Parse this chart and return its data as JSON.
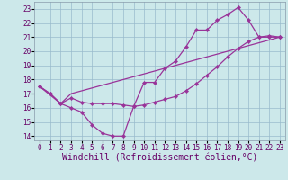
{
  "bg_color": "#cce8ea",
  "line_color": "#993399",
  "grid_color": "#99bbcc",
  "xlim": [
    -0.5,
    23.5
  ],
  "ylim": [
    13.7,
    23.5
  ],
  "xticks": [
    0,
    1,
    2,
    3,
    4,
    5,
    6,
    7,
    8,
    9,
    10,
    11,
    12,
    13,
    14,
    15,
    16,
    17,
    18,
    19,
    20,
    21,
    22,
    23
  ],
  "yticks": [
    14,
    15,
    16,
    17,
    18,
    19,
    20,
    21,
    22,
    23
  ],
  "line1_x": [
    0,
    1,
    2,
    3,
    4,
    5,
    6,
    7,
    8,
    9,
    10,
    11,
    12,
    13,
    14,
    15,
    16,
    17,
    18,
    19,
    20,
    21,
    22,
    23
  ],
  "line1_y": [
    17.5,
    17.0,
    16.3,
    16.0,
    15.7,
    14.8,
    14.2,
    14.0,
    14.0,
    16.1,
    17.8,
    17.8,
    18.8,
    19.3,
    20.3,
    21.5,
    21.5,
    22.2,
    22.6,
    23.1,
    22.2,
    21.0,
    21.0,
    21.0
  ],
  "line2_x": [
    0,
    2,
    3,
    23
  ],
  "line2_y": [
    17.5,
    16.3,
    17.0,
    21.0
  ],
  "line3_x": [
    0,
    1,
    2,
    3,
    4,
    5,
    6,
    7,
    8,
    9,
    10,
    11,
    12,
    13,
    14,
    15,
    16,
    17,
    18,
    19,
    20,
    21,
    22,
    23
  ],
  "line3_y": [
    17.5,
    17.0,
    16.3,
    16.7,
    16.4,
    16.3,
    16.3,
    16.3,
    16.2,
    16.1,
    16.2,
    16.4,
    16.6,
    16.8,
    17.2,
    17.7,
    18.3,
    18.9,
    19.6,
    20.2,
    20.7,
    21.0,
    21.1,
    21.0
  ],
  "xlabel": "Windchill (Refroidissement éolien,°C)",
  "tick_fontsize": 5.5,
  "xlabel_fontsize": 7
}
